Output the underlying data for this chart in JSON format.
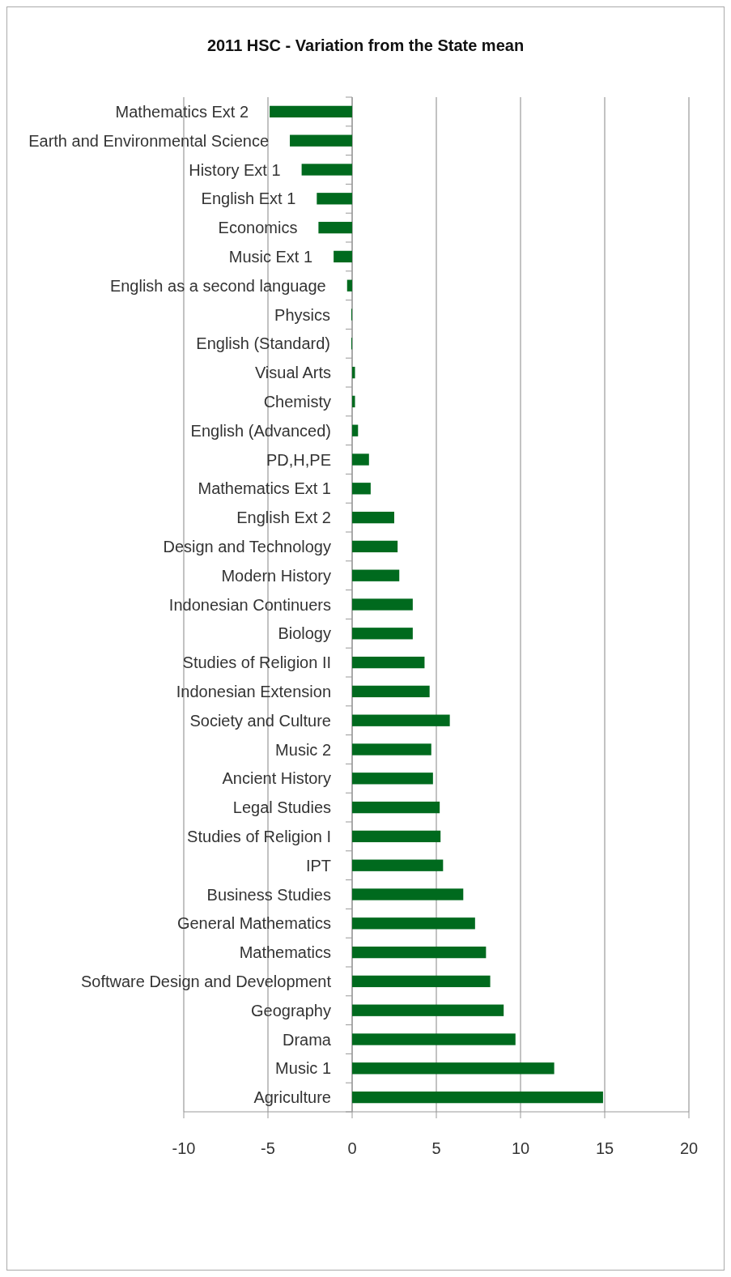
{
  "chart_data": {
    "type": "bar",
    "orientation": "horizontal",
    "title": "2011 HSC - Variation from the State mean",
    "categories": [
      "Mathematics Ext 2",
      "Earth and Environmental Science",
      "History Ext 1",
      "English Ext 1",
      "Economics",
      "Music Ext 1",
      "English as a second language",
      "Physics",
      "English (Standard)",
      "Visual Arts",
      "Chemisty",
      "English (Advanced)",
      "PD,H,PE",
      "Mathematics Ext 1",
      "English Ext 2",
      "Design and Technology",
      "Modern History",
      "Indonesian Continuers",
      "Biology",
      "Studies of Religion II",
      "Indonesian Extension",
      "Society and Culture",
      "Music 2",
      "Ancient History",
      "Legal Studies",
      "Studies of Religion I",
      "IPT",
      "Business Studies",
      "General Mathematics",
      "Mathematics",
      "Software Design and Development",
      "Geography",
      "Drama",
      "Music 1",
      "Agriculture"
    ],
    "values": [
      -4.9,
      -3.7,
      -3.0,
      -2.1,
      -2.0,
      -1.1,
      -0.3,
      -0.05,
      -0.05,
      0.17,
      0.17,
      0.35,
      1.0,
      1.1,
      2.5,
      2.7,
      2.8,
      3.6,
      3.6,
      4.3,
      4.6,
      5.8,
      4.7,
      4.8,
      5.2,
      5.25,
      5.4,
      6.6,
      7.3,
      7.95,
      8.2,
      9.0,
      9.7,
      12.0,
      14.9
    ],
    "color": "#006a1e",
    "xlim": [
      -10,
      20
    ],
    "xticks": [
      -10,
      -5,
      0,
      5,
      10,
      15,
      20
    ],
    "grid": "x"
  }
}
